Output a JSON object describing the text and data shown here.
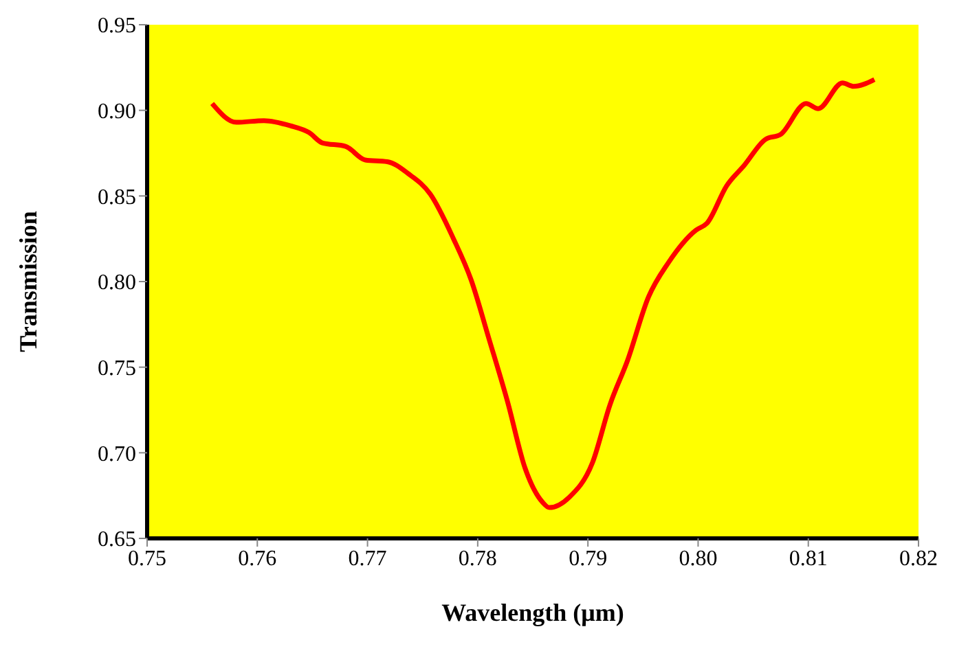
{
  "chart_data": {
    "type": "line",
    "xlabel": "Wavelength (μm)",
    "ylabel": "Transmission",
    "x": [
      0.7559,
      0.7581,
      0.7606,
      0.763,
      0.7647,
      0.7659,
      0.768,
      0.7698,
      0.7718,
      0.7737,
      0.7757,
      0.7778,
      0.7794,
      0.781,
      0.7827,
      0.7843,
      0.7859,
      0.7865,
      0.7883,
      0.7904,
      0.792,
      0.7936,
      0.7955,
      0.7973,
      0.7998,
      0.8008,
      0.8026,
      0.8042,
      0.8061,
      0.8075,
      0.8098,
      0.8109,
      0.8131,
      0.8141,
      0.816
    ],
    "series": [
      {
        "color": "#ff0000",
        "values": [
          0.904,
          0.893,
          0.894,
          0.891,
          0.887,
          0.881,
          0.879,
          0.871,
          0.87,
          0.863,
          0.851,
          0.825,
          0.801,
          0.767,
          0.73,
          0.691,
          0.671,
          0.668,
          0.674,
          0.694,
          0.728,
          0.754,
          0.791,
          0.811,
          0.83,
          0.834,
          0.856,
          0.868,
          0.883,
          0.886,
          0.904,
          0.901,
          0.916,
          0.914,
          0.918
        ]
      }
    ],
    "xlim": [
      0.75,
      0.82
    ],
    "xticks": [
      {
        "value": 0.75,
        "label": "0.75"
      },
      {
        "value": 0.76,
        "label": "0.76"
      },
      {
        "value": 0.77,
        "label": "0.77"
      },
      {
        "value": 0.78,
        "label": "0.78"
      },
      {
        "value": 0.79,
        "label": "0.79"
      },
      {
        "value": 0.8,
        "label": "0.80"
      },
      {
        "value": 0.81,
        "label": "0.81"
      },
      {
        "value": 0.82,
        "label": "0.82"
      }
    ],
    "ylim": [
      0.65,
      0.95
    ],
    "yticks": [
      {
        "value": 0.65,
        "label": "0.65"
      },
      {
        "value": 0.7,
        "label": "0.70"
      },
      {
        "value": 0.75,
        "label": "0.75"
      },
      {
        "value": 0.8,
        "label": "0.80"
      },
      {
        "value": 0.85,
        "label": "0.85"
      },
      {
        "value": 0.9,
        "label": "0.90"
      },
      {
        "value": 0.95,
        "label": "0.95"
      }
    ],
    "grid": false,
    "legend": false,
    "marker": "none",
    "line_style": "solid"
  }
}
